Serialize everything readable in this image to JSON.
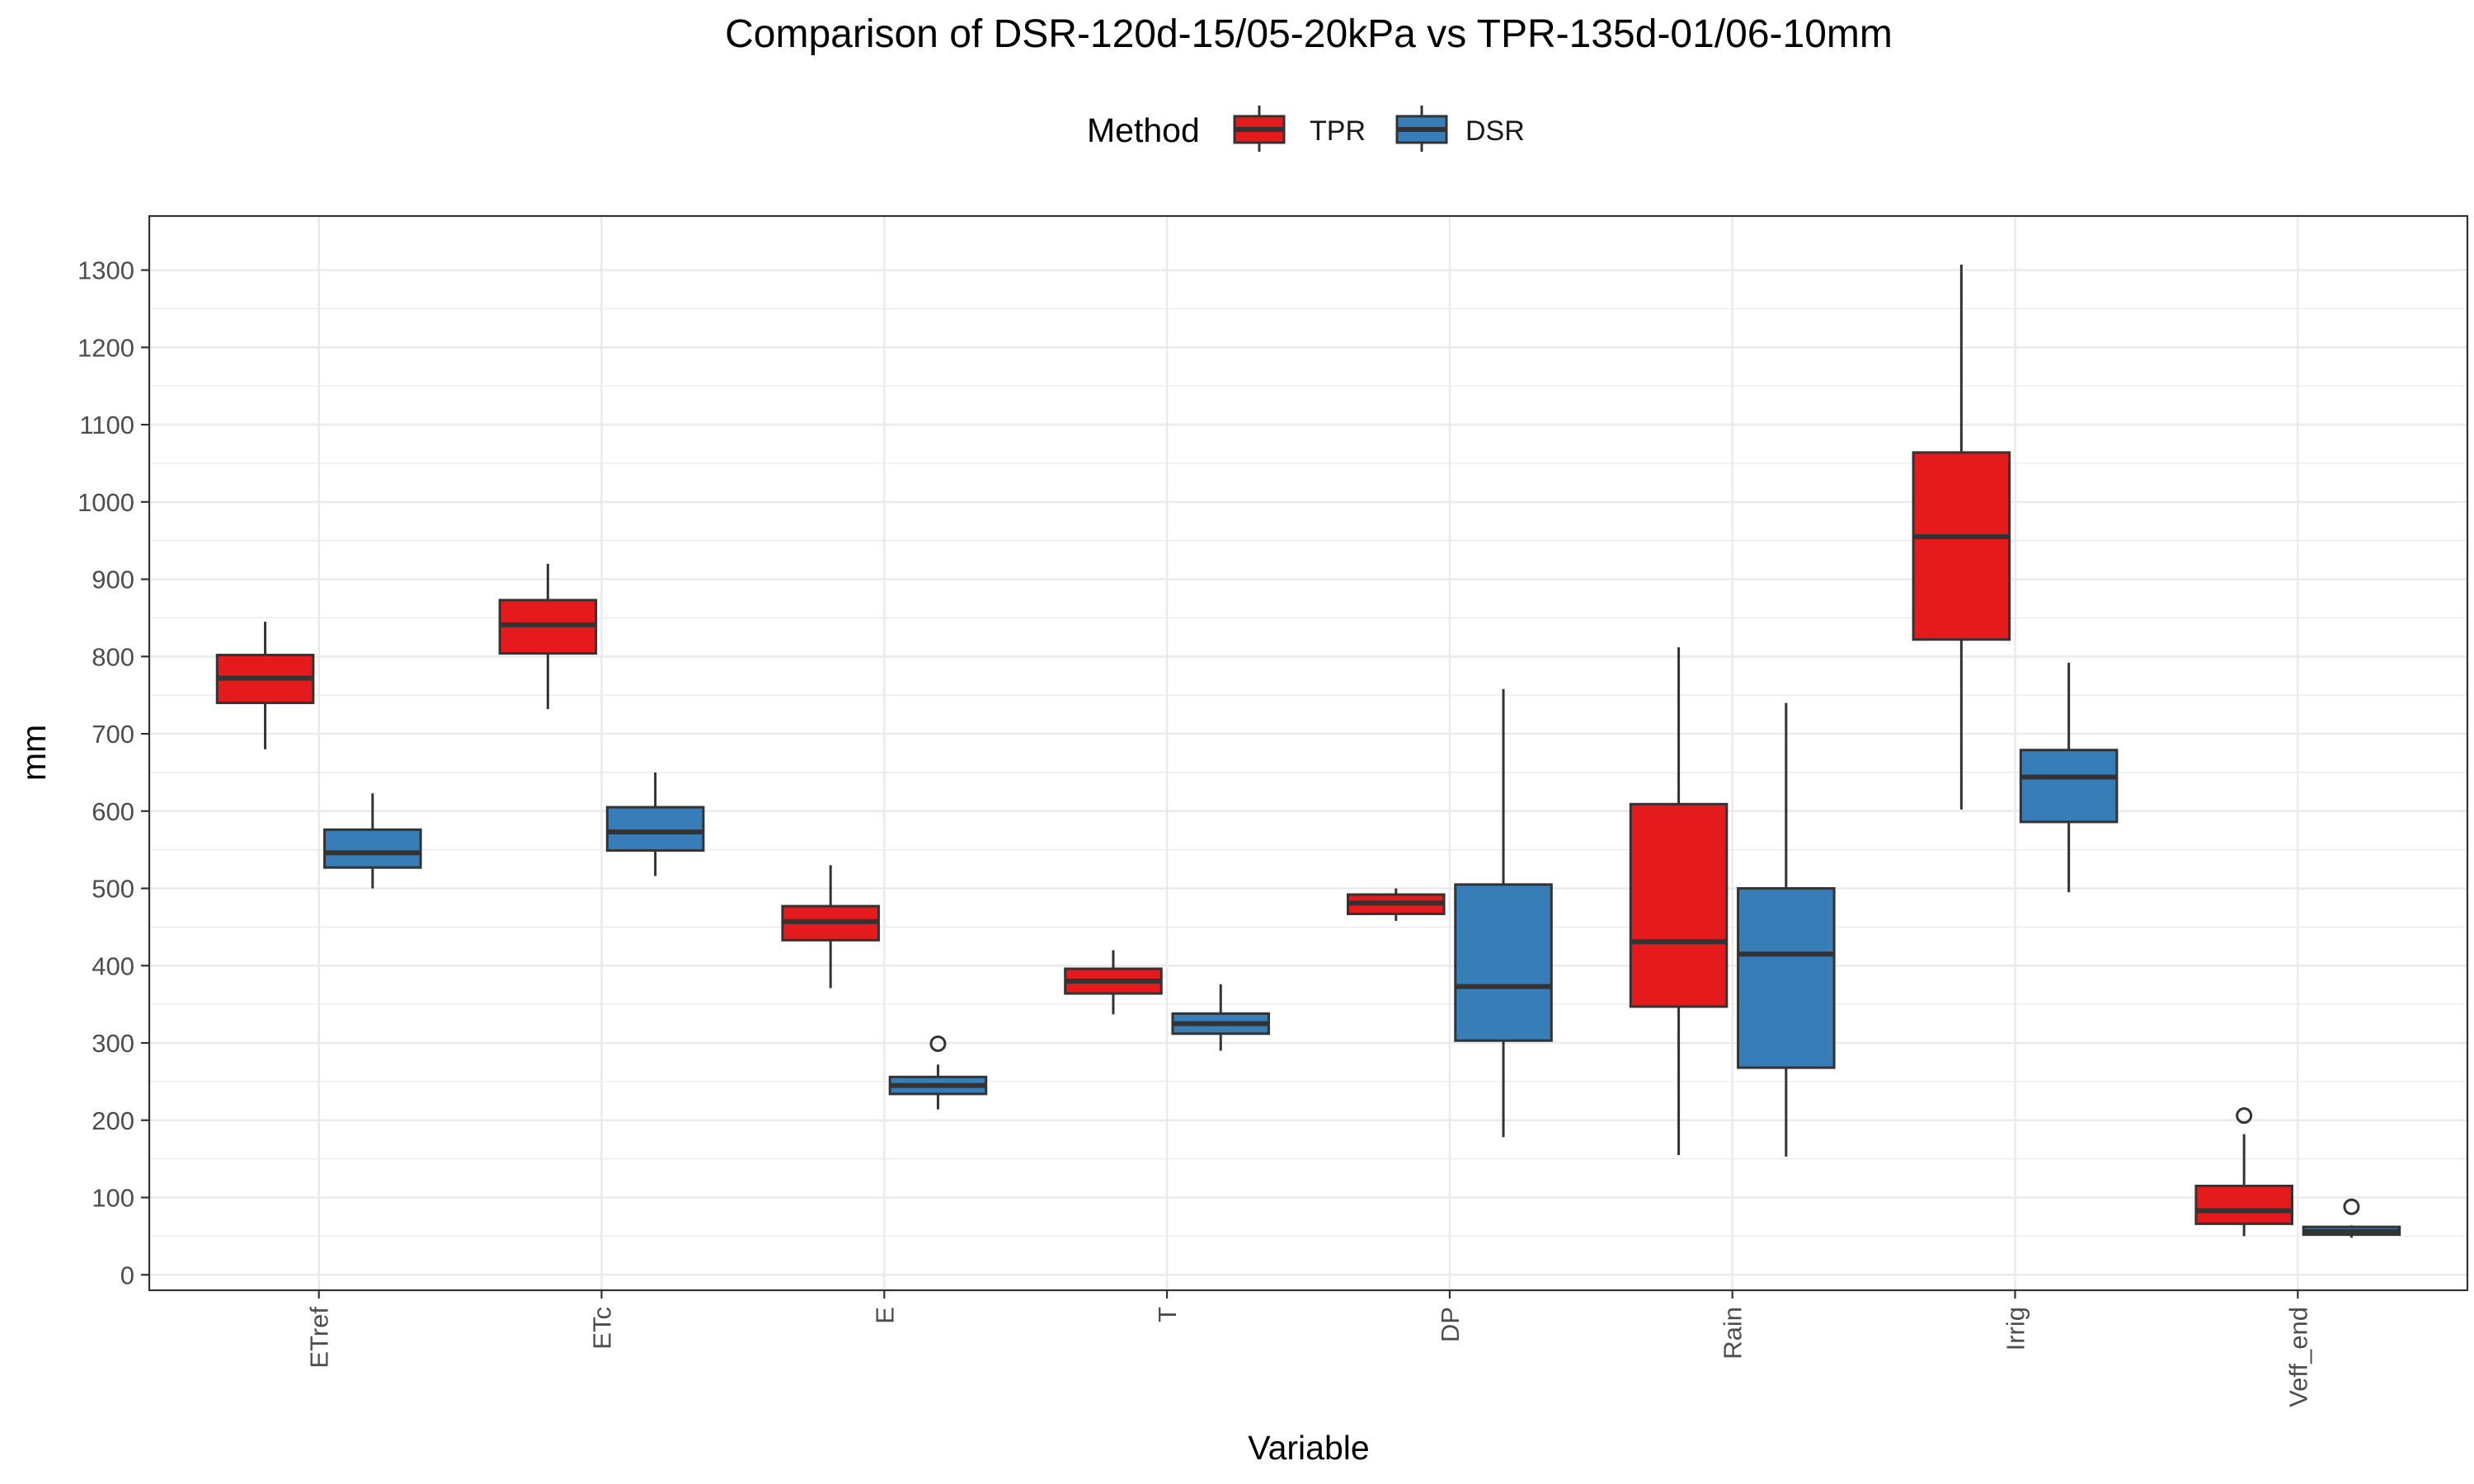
{
  "chart_data": {
    "type": "boxplot",
    "title": "Comparison of DSR-120d-15/05-20kPa vs TPR-135d-01/06-10mm",
    "xlabel": "Variable",
    "ylabel": "mm",
    "ylim": [
      -20,
      1370
    ],
    "yticks": [
      0,
      100,
      200,
      300,
      400,
      500,
      600,
      700,
      800,
      900,
      1000,
      1100,
      1200,
      1300
    ],
    "grid": true,
    "legend": {
      "title": "Method",
      "position": "top"
    },
    "categories": [
      "ETref",
      "ETc",
      "E",
      "T",
      "DP",
      "Rain",
      "Irrig",
      "Veff_end"
    ],
    "series": [
      {
        "name": "TPR",
        "color": "#e41a1c",
        "boxes": [
          {
            "whisker_low": 680,
            "q1": 740,
            "median": 772,
            "q3": 802,
            "whisker_high": 845,
            "outliers": []
          },
          {
            "whisker_low": 732,
            "q1": 804,
            "median": 841,
            "q3": 873,
            "whisker_high": 920,
            "outliers": []
          },
          {
            "whisker_low": 371,
            "q1": 433,
            "median": 457,
            "q3": 477,
            "whisker_high": 530,
            "outliers": []
          },
          {
            "whisker_low": 337,
            "q1": 364,
            "median": 380,
            "q3": 396,
            "whisker_high": 420,
            "outliers": []
          },
          {
            "whisker_low": 458,
            "q1": 467,
            "median": 481,
            "q3": 492,
            "whisker_high": 500,
            "outliers": []
          },
          {
            "whisker_low": 155,
            "q1": 347,
            "median": 431,
            "q3": 609,
            "whisker_high": 812,
            "outliers": []
          },
          {
            "whisker_low": 602,
            "q1": 822,
            "median": 955,
            "q3": 1064,
            "whisker_high": 1307,
            "outliers": []
          },
          {
            "whisker_low": 50,
            "q1": 66,
            "median": 83,
            "q3": 115,
            "whisker_high": 182,
            "outliers": [
              206
            ]
          }
        ]
      },
      {
        "name": "DSR",
        "color": "#377eb8",
        "boxes": [
          {
            "whisker_low": 500,
            "q1": 527,
            "median": 546,
            "q3": 576,
            "whisker_high": 623,
            "outliers": []
          },
          {
            "whisker_low": 516,
            "q1": 549,
            "median": 573,
            "q3": 605,
            "whisker_high": 650,
            "outliers": []
          },
          {
            "whisker_low": 214,
            "q1": 234,
            "median": 245,
            "q3": 256,
            "whisker_high": 272,
            "outliers": [
              299
            ]
          },
          {
            "whisker_low": 290,
            "q1": 312,
            "median": 325,
            "q3": 338,
            "whisker_high": 376,
            "outliers": []
          },
          {
            "whisker_low": 178,
            "q1": 303,
            "median": 373,
            "q3": 505,
            "whisker_high": 758,
            "outliers": []
          },
          {
            "whisker_low": 153,
            "q1": 268,
            "median": 415,
            "q3": 500,
            "whisker_high": 740,
            "outliers": []
          },
          {
            "whisker_low": 495,
            "q1": 586,
            "median": 644,
            "q3": 679,
            "whisker_high": 792,
            "outliers": []
          },
          {
            "whisker_low": 48,
            "q1": 52,
            "median": 56,
            "q3": 62,
            "whisker_high": 64,
            "outliers": [
              88
            ]
          }
        ]
      }
    ]
  }
}
